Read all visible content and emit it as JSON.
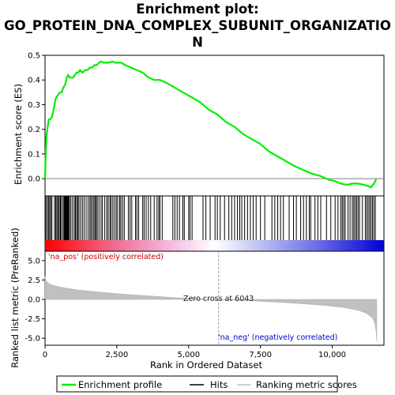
{
  "chart_data": [
    {
      "type": "line",
      "panel": "enrichment-profile",
      "title_line1": "Enrichment plot:",
      "title_line2": "GO_PROTEIN_DNA_COMPLEX_SUBUNIT_ORGANIZATIO",
      "title_line3": "N",
      "ylabel": "Enrichment score (ES)",
      "xlim": [
        0,
        11800
      ],
      "ylim": [
        -0.07,
        0.5
      ],
      "y_ticks": [
        0.0,
        0.1,
        0.2,
        0.3,
        0.4,
        0.5
      ],
      "y_tick_labels": [
        "0.0",
        "0.1",
        "0.2",
        "0.3",
        "0.4",
        "0.5"
      ],
      "series": [
        {
          "name": "Enrichment profile",
          "color": "#00ee00",
          "x": [
            0,
            20,
            50,
            90,
            130,
            180,
            240,
            300,
            360,
            400,
            460,
            520,
            580,
            640,
            700,
            760,
            800,
            860,
            920,
            980,
            1040,
            1100,
            1160,
            1220,
            1300,
            1400,
            1480,
            1560,
            1640,
            1720,
            1800,
            1880,
            1950,
            2050,
            2200,
            2350,
            2450,
            2550,
            2650,
            2800,
            3000,
            3200,
            3400,
            3600,
            3800,
            4000,
            4200,
            4500,
            4800,
            5100,
            5400,
            5700,
            6000,
            6300,
            6600,
            6900,
            7200,
            7500,
            7800,
            8100,
            8400,
            8700,
            9000,
            9300,
            9600,
            9900,
            10100,
            10300,
            10500,
            10700,
            10900,
            11100,
            11250,
            11350,
            11450,
            11500,
            11530
          ],
          "values": [
            0.0,
            0.08,
            0.17,
            0.21,
            0.24,
            0.24,
            0.25,
            0.28,
            0.32,
            0.33,
            0.34,
            0.35,
            0.35,
            0.37,
            0.38,
            0.41,
            0.42,
            0.41,
            0.41,
            0.41,
            0.42,
            0.43,
            0.43,
            0.44,
            0.43,
            0.44,
            0.44,
            0.45,
            0.45,
            0.46,
            0.46,
            0.47,
            0.475,
            0.47,
            0.47,
            0.475,
            0.47,
            0.47,
            0.47,
            0.46,
            0.45,
            0.44,
            0.43,
            0.41,
            0.4,
            0.4,
            0.39,
            0.37,
            0.35,
            0.33,
            0.31,
            0.28,
            0.26,
            0.23,
            0.21,
            0.18,
            0.16,
            0.14,
            0.11,
            0.09,
            0.07,
            0.05,
            0.035,
            0.02,
            0.01,
            -0.005,
            -0.01,
            -0.02,
            -0.025,
            -0.02,
            -0.02,
            -0.025,
            -0.03,
            -0.035,
            -0.02,
            -0.01,
            0.0
          ]
        }
      ]
    },
    {
      "type": "hits",
      "panel": "hit-barcode",
      "series": [
        {
          "name": "Hits",
          "color": "#000000",
          "x": [
            30,
            80,
            120,
            160,
            200,
            240,
            330,
            370,
            410,
            450,
            470,
            520,
            540,
            560,
            620,
            660,
            680,
            700,
            720,
            740,
            760,
            780,
            800,
            820,
            850,
            900,
            960,
            1020,
            1060,
            1100,
            1140,
            1180,
            1240,
            1300,
            1360,
            1430,
            1500,
            1560,
            1600,
            1650,
            1700,
            1740,
            1780,
            1820,
            1880,
            1950,
            2000,
            2080,
            2150,
            2200,
            2260,
            2300,
            2360,
            2420,
            2480,
            2530,
            2600,
            2640,
            2700,
            2760,
            2900,
            2960,
            3020,
            3150,
            3200,
            3260,
            3400,
            3450,
            3520,
            3600,
            3680,
            3800,
            3900,
            3960,
            4000,
            4080,
            4450,
            4520,
            4600,
            4680,
            4800,
            4850,
            5000,
            5050,
            5120,
            5500,
            5600,
            5750,
            5920,
            6000,
            6100,
            6250,
            6400,
            6500,
            6600,
            6700,
            6780,
            6850,
            6950,
            7050,
            7150,
            7250,
            7350,
            7500,
            7650,
            7900,
            8000,
            8100,
            8200,
            8300,
            8500,
            8650,
            8750,
            8900,
            9000,
            9100,
            9200,
            9250,
            9400,
            9500,
            9600,
            9800,
            9950,
            10100,
            10200,
            10300,
            10350,
            10400,
            10450,
            10550,
            10620,
            10700,
            10750,
            10800,
            10850,
            10900,
            10950,
            11050,
            11150,
            11200,
            11250,
            11300,
            11350,
            11400,
            11450,
            11500
          ]
        }
      ]
    },
    {
      "type": "area",
      "panel": "ranked-list-metric",
      "ylabel": "Ranked list metric (PreRanked)",
      "xlabel": "Rank in Ordered Dataset",
      "xlim": [
        0,
        11800
      ],
      "ylim": [
        -5.9,
        6.2
      ],
      "x_ticks": [
        0,
        2500,
        5000,
        7500,
        10000
      ],
      "x_tick_labels": [
        "0",
        "2,500",
        "5,000",
        "7,500",
        "10,000"
      ],
      "y_ticks": [
        5.0,
        2.5,
        0.0,
        -2.5,
        -5.0
      ],
      "y_tick_labels": [
        "5.0",
        "2.5",
        "0.0",
        "-2.5",
        "-5.0"
      ],
      "zero_cross": 6043,
      "series": [
        {
          "name": "Ranking metric scores",
          "color": "#c0c0c0",
          "x": [
            0,
            20,
            60,
            150,
            300,
            500,
            800,
            1200,
            1700,
            2300,
            3000,
            3800,
            4600,
            5400,
            6043,
            6700,
            7500,
            8300,
            9100,
            9800,
            10400,
            10900,
            11200,
            11400,
            11480,
            11530,
            11550
          ],
          "values": [
            3.0,
            2.6,
            2.3,
            2.0,
            1.8,
            1.6,
            1.4,
            1.2,
            1.0,
            0.8,
            0.6,
            0.4,
            0.2,
            0.08,
            0.0,
            -0.1,
            -0.25,
            -0.4,
            -0.6,
            -0.8,
            -1.05,
            -1.4,
            -1.8,
            -2.4,
            -3.0,
            -4.2,
            -5.4
          ]
        }
      ]
    }
  ],
  "annotations": {
    "pos_label": "'na_pos' (positively correlated)",
    "neg_label": "'na_neg' (negatively correlated)",
    "zero_cross_label": "Zero cross at 6043",
    "pos_color": "#cc0000",
    "neg_color": "#0000cc"
  },
  "legend": {
    "items": [
      {
        "label": "Enrichment profile",
        "color": "#00ee00"
      },
      {
        "label": "Hits",
        "color": "#000000"
      },
      {
        "label": "Ranking metric scores",
        "color": "#c0c0c0"
      }
    ]
  }
}
